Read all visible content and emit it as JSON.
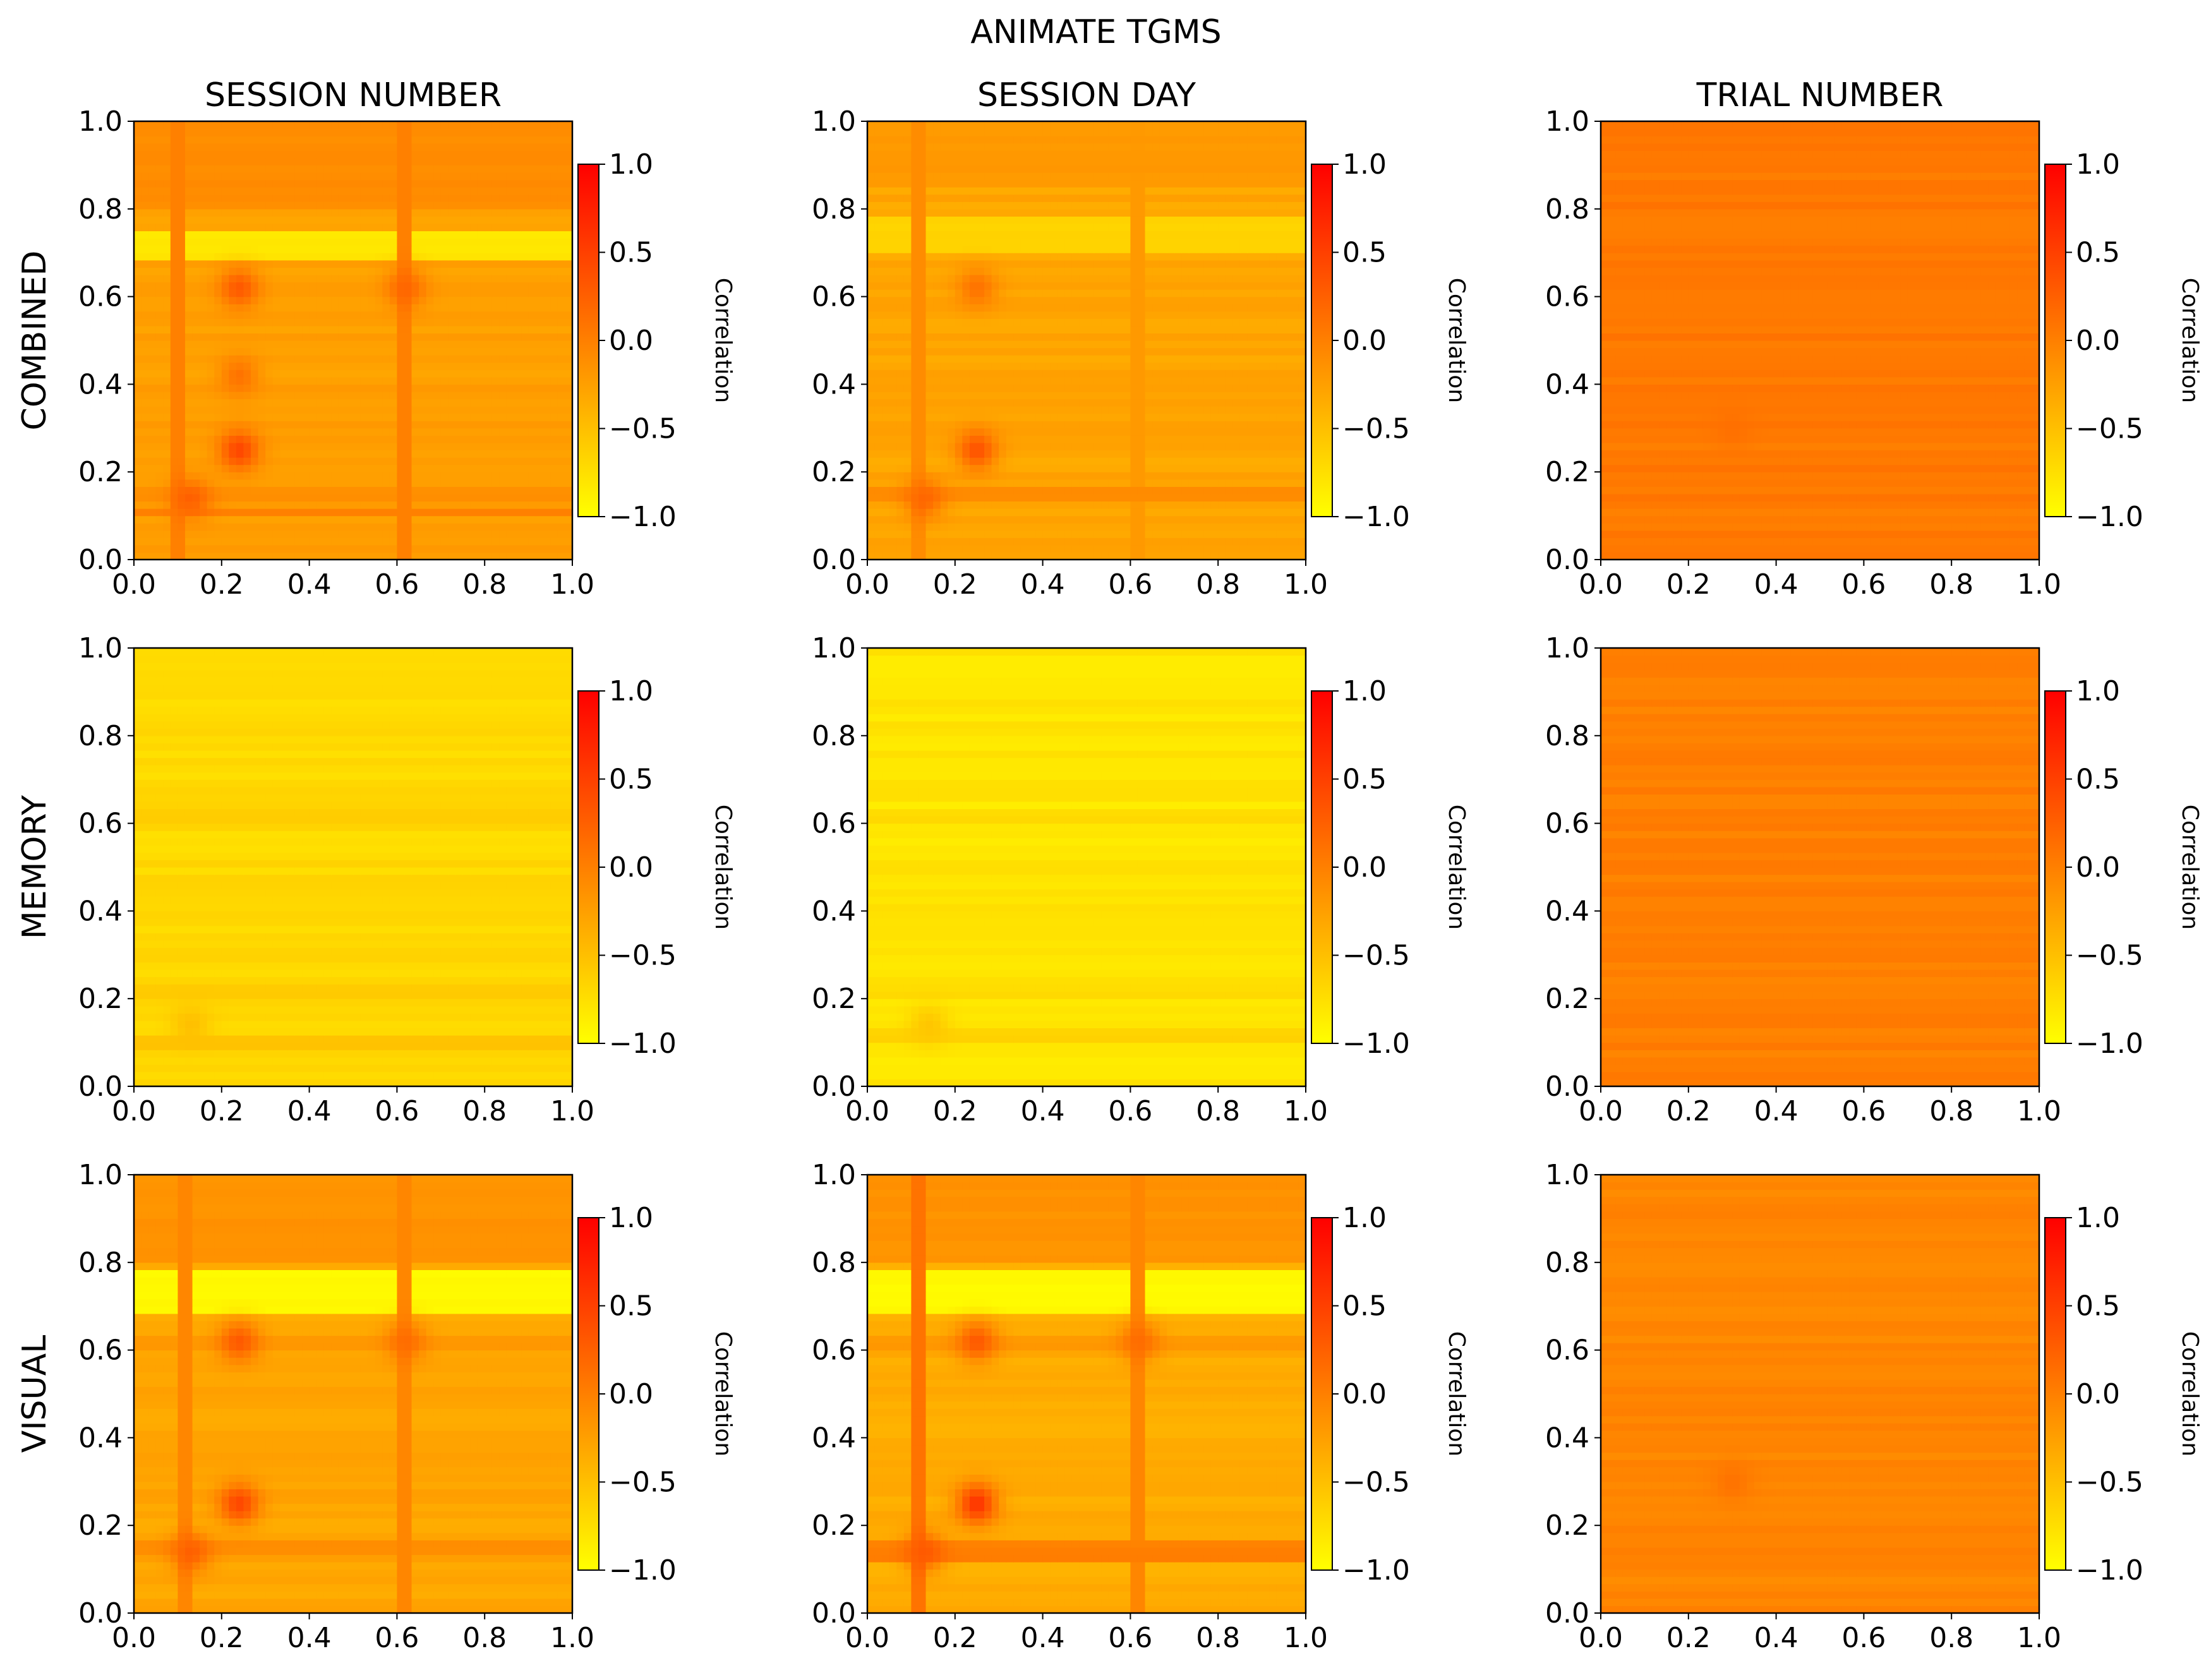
{
  "figure": {
    "suptitle": "ANIMATE TGMS",
    "column_titles": [
      "SESSION NUMBER",
      "SESSION DAY",
      "TRIAL NUMBER"
    ],
    "row_labels": [
      "COMBINED",
      "MEMORY",
      "VISUAL"
    ]
  },
  "chart_data": {
    "type": "heatmap",
    "title": "ANIMATE TGMS",
    "colormap": {
      "name": "autumn_r",
      "low_color": "#ffff00",
      "high_color": "#ff0000"
    },
    "axes": {
      "x_range": [
        0.0,
        1.0
      ],
      "y_range": [
        0.0,
        1.0
      ],
      "x_ticks": [
        "0.0",
        "0.2",
        "0.4",
        "0.6",
        "0.8",
        "1.0"
      ],
      "y_ticks": [
        "0.0",
        "0.2",
        "0.4",
        "0.6",
        "0.8",
        "1.0"
      ],
      "grid": false
    },
    "colorbar": {
      "label": "Correlation",
      "range": [
        -1.0,
        1.0
      ],
      "ticks": [
        "−1.0",
        "−0.5",
        "0.0",
        "0.5",
        "1.0"
      ]
    },
    "panels": [
      {
        "row": "COMBINED",
        "column": "SESSION NUMBER",
        "base_value": -0.25,
        "bands": [
          {
            "y": [
              0.8,
              1.0
            ],
            "value": -0.1
          },
          {
            "y": [
              0.68,
              0.75
            ],
            "value": -0.8
          },
          {
            "y": [
              0.6,
              0.64
            ],
            "value": -0.2
          },
          {
            "y": [
              0.13,
              0.16
            ],
            "value": -0.1
          },
          {
            "y": [
              0.1,
              0.12
            ],
            "value": 0.0
          }
        ],
        "columns": [
          {
            "x": [
              0.09,
              0.12
            ],
            "value": 0.0
          },
          {
            "x": [
              0.6,
              0.64
            ],
            "value": 0.0
          }
        ],
        "peaks": [
          {
            "x": 0.24,
            "y": 0.25,
            "value": 0.45
          },
          {
            "x": 0.24,
            "y": 0.42,
            "value": 0.1
          },
          {
            "x": 0.24,
            "y": 0.62,
            "value": 0.3
          },
          {
            "x": 0.62,
            "y": 0.62,
            "value": 0.2
          },
          {
            "x": 0.13,
            "y": 0.14,
            "value": 0.25
          }
        ]
      },
      {
        "row": "COMBINED",
        "column": "SESSION DAY",
        "base_value": -0.3,
        "bands": [
          {
            "y": [
              0.85,
              1.0
            ],
            "value": -0.2
          },
          {
            "y": [
              0.7,
              0.78
            ],
            "value": -0.65
          },
          {
            "y": [
              0.13,
              0.16
            ],
            "value": -0.1
          }
        ],
        "columns": [
          {
            "x": [
              0.1,
              0.13
            ],
            "value": -0.1
          },
          {
            "x": [
              0.6,
              0.64
            ],
            "value": -0.2
          }
        ],
        "peaks": [
          {
            "x": 0.25,
            "y": 0.25,
            "value": 0.35
          },
          {
            "x": 0.25,
            "y": 0.62,
            "value": 0.1
          },
          {
            "x": 0.13,
            "y": 0.14,
            "value": 0.2
          }
        ]
      },
      {
        "row": "COMBINED",
        "column": "TRIAL NUMBER",
        "base_value": 0.05,
        "bands": [],
        "columns": [],
        "peaks": [
          {
            "x": 0.3,
            "y": 0.3,
            "value": 0.12
          }
        ]
      },
      {
        "row": "MEMORY",
        "column": "SESSION NUMBER",
        "base_value": -0.7,
        "bands": [
          {
            "y": [
              0.6,
              0.64
            ],
            "value": -0.6
          },
          {
            "y": [
              0.2,
              0.24
            ],
            "value": -0.6
          },
          {
            "y": [
              0.08,
              0.12
            ],
            "value": -0.55
          }
        ],
        "columns": [],
        "peaks": [
          {
            "x": 0.13,
            "y": 0.14,
            "value": -0.5
          }
        ]
      },
      {
        "row": "MEMORY",
        "column": "SESSION DAY",
        "base_value": -0.8,
        "bands": [
          {
            "y": [
              0.6,
              0.64
            ],
            "value": -0.7
          },
          {
            "y": [
              0.2,
              0.24
            ],
            "value": -0.7
          },
          {
            "y": [
              0.1,
              0.14
            ],
            "value": -0.65
          }
        ],
        "columns": [],
        "peaks": [
          {
            "x": 0.14,
            "y": 0.14,
            "value": -0.55
          }
        ]
      },
      {
        "row": "MEMORY",
        "column": "TRIAL NUMBER",
        "base_value": 0.0,
        "bands": [],
        "columns": [],
        "peaks": []
      },
      {
        "row": "VISUAL",
        "column": "SESSION NUMBER",
        "base_value": -0.3,
        "bands": [
          {
            "y": [
              0.8,
              1.0
            ],
            "value": -0.15
          },
          {
            "y": [
              0.68,
              0.79
            ],
            "value": -0.95
          },
          {
            "y": [
              0.6,
              0.64
            ],
            "value": -0.2
          },
          {
            "y": [
              0.13,
              0.16
            ],
            "value": -0.1
          }
        ],
        "columns": [
          {
            "x": [
              0.1,
              0.13
            ],
            "value": -0.05
          },
          {
            "x": [
              0.6,
              0.64
            ],
            "value": -0.05
          }
        ],
        "peaks": [
          {
            "x": 0.24,
            "y": 0.25,
            "value": 0.45
          },
          {
            "x": 0.24,
            "y": 0.62,
            "value": 0.3
          },
          {
            "x": 0.62,
            "y": 0.62,
            "value": 0.15
          },
          {
            "x": 0.13,
            "y": 0.14,
            "value": 0.25
          }
        ]
      },
      {
        "row": "VISUAL",
        "column": "SESSION DAY",
        "base_value": -0.35,
        "bands": [
          {
            "y": [
              0.8,
              1.0
            ],
            "value": -0.15
          },
          {
            "y": [
              0.69,
              0.79
            ],
            "value": -0.95
          },
          {
            "y": [
              0.6,
              0.64
            ],
            "value": -0.2
          },
          {
            "y": [
              0.12,
              0.16
            ],
            "value": 0.0
          }
        ],
        "columns": [
          {
            "x": [
              0.1,
              0.13
            ],
            "value": 0.1
          },
          {
            "x": [
              0.6,
              0.64
            ],
            "value": -0.05
          }
        ],
        "peaks": [
          {
            "x": 0.25,
            "y": 0.25,
            "value": 0.6
          },
          {
            "x": 0.25,
            "y": 0.62,
            "value": 0.3
          },
          {
            "x": 0.62,
            "y": 0.62,
            "value": 0.15
          },
          {
            "x": 0.13,
            "y": 0.14,
            "value": 0.3
          }
        ]
      },
      {
        "row": "VISUAL",
        "column": "TRIAL NUMBER",
        "base_value": -0.05,
        "bands": [],
        "columns": [],
        "peaks": [
          {
            "x": 0.3,
            "y": 0.3,
            "value": 0.1
          }
        ]
      }
    ]
  }
}
